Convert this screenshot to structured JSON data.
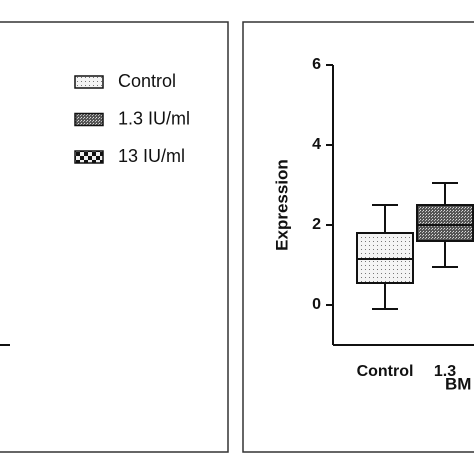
{
  "chart_data": {
    "type": "box",
    "y_label": "Expression",
    "x_label": "BM",
    "categories": [
      "Control",
      "1.3"
    ],
    "ylim": [
      -1,
      6
    ],
    "yticks": [
      0,
      2,
      4,
      6
    ],
    "series": [
      {
        "name": "Control",
        "pattern": "dots",
        "box": {
          "min": -0.1,
          "q1": 0.55,
          "median": 1.15,
          "q3": 1.8,
          "max": 2.5
        }
      },
      {
        "name": "1.3 IU/ml",
        "pattern": "dense",
        "box": {
          "min": 0.95,
          "q1": 1.6,
          "median": 2.0,
          "q3": 2.5,
          "max": 3.05
        }
      },
      {
        "name": "13 IU/ml",
        "pattern": "checker"
      }
    ]
  }
}
